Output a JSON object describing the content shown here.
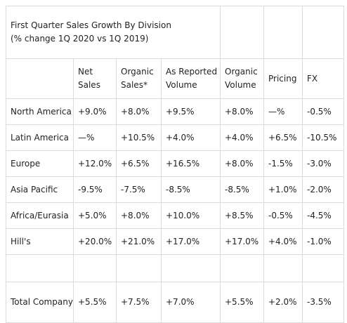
{
  "table": {
    "title": "First Quarter Sales Growth By Division",
    "subtitle": "(% change 1Q 2020 vs 1Q 2019)",
    "headers": [
      "",
      "Net\nSales",
      "Organic\nSales*",
      "As Reported\nVolume",
      "Organic\nVolume",
      "Pricing",
      "FX"
    ],
    "rows": [
      {
        "division": "North America",
        "values": [
          "+9.0%",
          "+8.0%",
          "+9.5%",
          "+8.0%",
          "—%",
          "-0.5%"
        ]
      },
      {
        "division": "Latin America",
        "values": [
          "—%",
          "+10.5%",
          "+4.0%",
          "+4.0%",
          "+6.5%",
          "-10.5%"
        ]
      },
      {
        "division": "Europe",
        "values": [
          "+12.0%",
          "+6.5%",
          "+16.5%",
          "+8.0%",
          "-1.5%",
          "-3.0%"
        ]
      },
      {
        "division": "Asia Pacific",
        "values": [
          "-9.5%",
          "-7.5%",
          "-8.5%",
          "-8.5%",
          "+1.0%",
          "-2.0%"
        ]
      },
      {
        "division": "Africa/Eurasia",
        "values": [
          "+5.0%",
          "+8.0%",
          "+10.0%",
          "+8.5%",
          "-0.5%",
          "-4.5%"
        ]
      },
      {
        "division": "Hill's",
        "values": [
          "+20.0%",
          "+21.0%",
          "+17.0%",
          "+17.0%",
          "+4.0%",
          "-1.0%"
        ]
      }
    ],
    "total": {
      "division": "Total Company",
      "values": [
        "+5.5%",
        "+7.5%",
        "+7.0%",
        "+5.5%",
        "+2.0%",
        "-3.5%"
      ]
    }
  }
}
